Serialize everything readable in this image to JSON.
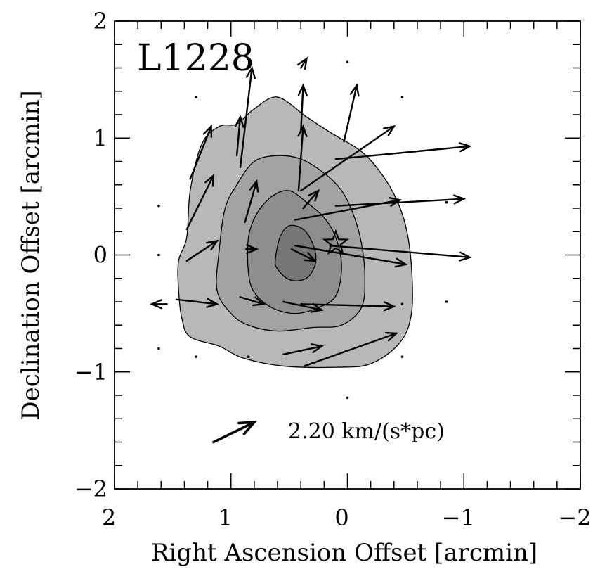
{
  "chart_data": {
    "type": "scatter",
    "subtype": "velocity-gradient vector map over gray contour map",
    "panel_label": "L1228",
    "xlabel": "Right Ascension Offset [arcmin]",
    "ylabel": "Declination Offset [arcmin]",
    "xlim": [
      2,
      -2
    ],
    "ylim": [
      -2,
      2
    ],
    "x_ticks": [
      2,
      1,
      0,
      -1,
      -2
    ],
    "y_ticks": [
      2,
      1,
      0,
      -1,
      -2
    ],
    "x_tick_labels": [
      "2",
      "1",
      "0",
      "−1",
      "−2"
    ],
    "y_tick_labels": [
      "2",
      "1",
      "0",
      "−1",
      "−2"
    ],
    "minor_tick_step": 0.2,
    "grid": false,
    "star_marker": {
      "x": 0.1,
      "y": 0.1
    },
    "scale_vector": {
      "label": "2.20 km/(s*pc)",
      "from": [
        1.15,
        -1.6
      ],
      "to": [
        0.8,
        -1.43
      ]
    },
    "contour_fill_colors": [
      "#b8b8b8",
      "#a3a3a3",
      "#8e8e8e",
      "#767676"
    ],
    "contours": [
      {
        "level": 1,
        "points": [
          [
            1.45,
            -0.05
          ],
          [
            1.45,
            -0.3
          ],
          [
            1.42,
            -0.55
          ],
          [
            1.35,
            -0.7
          ],
          [
            1.1,
            -0.78
          ],
          [
            0.9,
            -0.88
          ],
          [
            0.55,
            -0.95
          ],
          [
            0.1,
            -0.96
          ],
          [
            -0.2,
            -0.93
          ],
          [
            -0.45,
            -0.75
          ],
          [
            -0.55,
            -0.5
          ],
          [
            -0.55,
            -0.1
          ],
          [
            -0.5,
            0.25
          ],
          [
            -0.4,
            0.52
          ],
          [
            -0.25,
            0.75
          ],
          [
            -0.1,
            0.9
          ],
          [
            0.15,
            1.05
          ],
          [
            0.35,
            1.18
          ],
          [
            0.6,
            1.35
          ],
          [
            0.8,
            1.25
          ],
          [
            0.95,
            1.12
          ],
          [
            1.1,
            1.1
          ],
          [
            1.25,
            0.95
          ],
          [
            1.35,
            0.55
          ],
          [
            1.38,
            0.15
          ]
        ]
      },
      {
        "level": 2,
        "points": [
          [
            1.12,
            -0.3
          ],
          [
            1.0,
            -0.5
          ],
          [
            0.85,
            -0.6
          ],
          [
            0.6,
            -0.65
          ],
          [
            0.3,
            -0.62
          ],
          [
            0.05,
            -0.6
          ],
          [
            -0.12,
            -0.45
          ],
          [
            -0.15,
            -0.2
          ],
          [
            -0.12,
            0.1
          ],
          [
            -0.05,
            0.35
          ],
          [
            0.05,
            0.55
          ],
          [
            0.2,
            0.7
          ],
          [
            0.4,
            0.82
          ],
          [
            0.6,
            0.85
          ],
          [
            0.8,
            0.8
          ],
          [
            0.95,
            0.6
          ],
          [
            1.05,
            0.4
          ],
          [
            1.1,
            0.05
          ]
        ]
      },
      {
        "level": 3,
        "points": [
          [
            0.85,
            -0.15
          ],
          [
            0.8,
            -0.32
          ],
          [
            0.65,
            -0.45
          ],
          [
            0.45,
            -0.5
          ],
          [
            0.25,
            -0.45
          ],
          [
            0.1,
            -0.35
          ],
          [
            0.05,
            -0.1
          ],
          [
            0.1,
            0.15
          ],
          [
            0.2,
            0.32
          ],
          [
            0.35,
            0.45
          ],
          [
            0.5,
            0.55
          ],
          [
            0.65,
            0.5
          ],
          [
            0.78,
            0.35
          ],
          [
            0.85,
            0.15
          ]
        ]
      },
      {
        "level": 4,
        "points": [
          [
            0.62,
            -0.05
          ],
          [
            0.6,
            -0.12
          ],
          [
            0.52,
            -0.2
          ],
          [
            0.42,
            -0.22
          ],
          [
            0.33,
            -0.18
          ],
          [
            0.27,
            -0.05
          ],
          [
            0.3,
            0.1
          ],
          [
            0.38,
            0.22
          ],
          [
            0.5,
            0.25
          ],
          [
            0.58,
            0.15
          ]
        ]
      }
    ],
    "vectors": [
      {
        "from": [
          1.35,
          0.65
        ],
        "to": [
          1.17,
          1.1
        ]
      },
      {
        "from": [
          1.38,
          0.22
        ],
        "to": [
          1.15,
          0.68
        ]
      },
      {
        "from": [
          0.92,
          0.75
        ],
        "to": [
          0.82,
          1.6
        ]
      },
      {
        "from": [
          0.95,
          0.85
        ],
        "to": [
          0.92,
          1.18
        ]
      },
      {
        "from": [
          0.88,
          0.28
        ],
        "to": [
          0.78,
          0.63
        ]
      },
      {
        "from": [
          0.4,
          1.05
        ],
        "to": [
          0.38,
          1.45
        ]
      },
      {
        "from": [
          0.42,
          0.55
        ],
        "to": [
          0.38,
          1.1
        ]
      },
      {
        "from": [
          0.38,
          0.4
        ],
        "to": [
          0.25,
          0.55
        ]
      },
      {
        "from": [
          0.4,
          1.6
        ],
        "to": [
          0.35,
          1.68
        ]
      },
      {
        "from": [
          0.03,
          0.97
        ],
        "to": [
          -0.08,
          1.45
        ]
      },
      {
        "from": [
          0.4,
          0.55
        ],
        "to": [
          -0.4,
          1.1
        ]
      },
      {
        "from": [
          0.1,
          0.82
        ],
        "to": [
          -1.05,
          0.93
        ]
      },
      {
        "from": [
          0.45,
          0.3
        ],
        "to": [
          -0.45,
          0.47
        ]
      },
      {
        "from": [
          0.1,
          0.42
        ],
        "to": [
          -1.0,
          0.48
        ]
      },
      {
        "from": [
          1.38,
          -0.05
        ],
        "to": [
          1.12,
          0.12
        ]
      },
      {
        "from": [
          0.87,
          0.05
        ],
        "to": [
          0.78,
          0.05
        ]
      },
      {
        "from": [
          0.48,
          0.05
        ],
        "to": [
          0.28,
          -0.05
        ]
      },
      {
        "from": [
          0.45,
          0.08
        ],
        "to": [
          -0.5,
          -0.08
        ]
      },
      {
        "from": [
          0.15,
          0.08
        ],
        "to": [
          -1.05,
          -0.02
        ]
      },
      {
        "from": [
          1.47,
          -0.38
        ],
        "to": [
          1.12,
          -0.42
        ]
      },
      {
        "from": [
          0.92,
          -0.36
        ],
        "to": [
          0.72,
          -0.42
        ]
      },
      {
        "from": [
          1.55,
          -0.42
        ],
        "to": [
          1.68,
          -0.42
        ]
      },
      {
        "from": [
          0.55,
          -0.4
        ],
        "to": [
          0.22,
          -0.47
        ]
      },
      {
        "from": [
          0.4,
          -0.42
        ],
        "to": [
          -0.4,
          -0.44
        ]
      },
      {
        "from": [
          0.55,
          -0.85
        ],
        "to": [
          0.22,
          -0.78
        ]
      },
      {
        "from": [
          0.37,
          -0.95
        ],
        "to": [
          -0.42,
          -0.67
        ]
      }
    ],
    "dots": [
      [
        1.3,
        1.35
      ],
      [
        0.0,
        1.65
      ],
      [
        -0.47,
        1.35
      ],
      [
        1.62,
        0.42
      ],
      [
        -0.85,
        0.45
      ],
      [
        1.62,
        0.0
      ],
      [
        -0.47,
        -0.42
      ],
      [
        -0.85,
        -0.4
      ],
      [
        1.62,
        -0.8
      ],
      [
        1.3,
        -0.87
      ],
      [
        0.85,
        -0.87
      ],
      [
        -0.47,
        -0.87
      ],
      [
        0.0,
        -1.22
      ]
    ]
  }
}
